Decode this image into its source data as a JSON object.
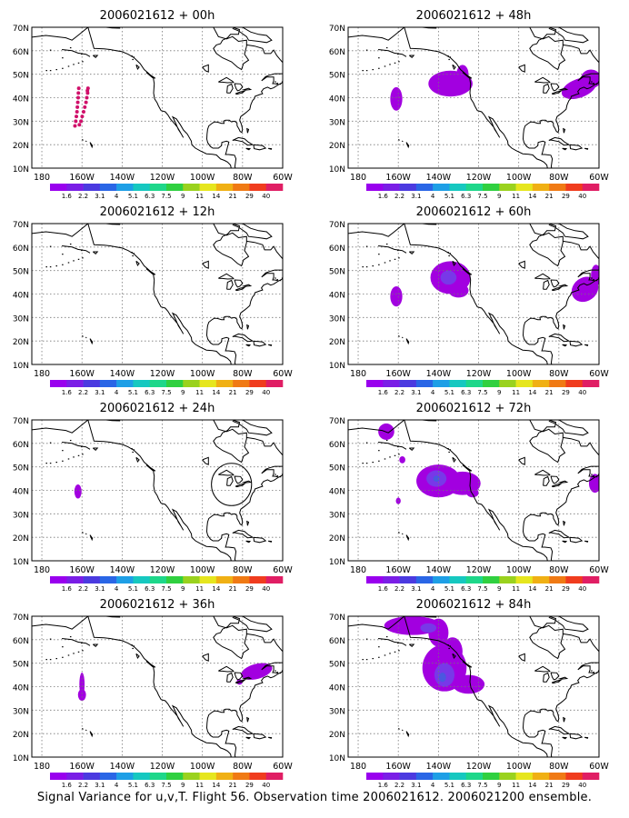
{
  "caption": "Signal Variance for u,v,T. Flight 56. Observation time 2006021612. 2006021200 ensemble.",
  "axes": {
    "lat_labels": [
      "70N",
      "60N",
      "50N",
      "40N",
      "30N",
      "20N",
      "10N"
    ],
    "lon_labels": [
      "180",
      "160W",
      "140W",
      "120W",
      "100W",
      "80W",
      "60W"
    ]
  },
  "colorbar": {
    "labels": [
      "1.6",
      "2.2",
      "3.1",
      "4",
      "5.1",
      "6.3",
      "7.5",
      "9",
      "11",
      "14",
      "21",
      "29",
      "40"
    ],
    "colors": [
      "#9900ee",
      "#7a1ee6",
      "#4b3ae0",
      "#2a66e6",
      "#1e9fe6",
      "#16c8c0",
      "#1ed78a",
      "#30d040",
      "#9ad21e",
      "#e6e61e",
      "#f0b014",
      "#f07a14",
      "#f03c1e",
      "#e01e64"
    ]
  },
  "panels": [
    {
      "id": "p00",
      "title": "2006021612 + 00h"
    },
    {
      "id": "p48",
      "title": "2006021612 + 48h"
    },
    {
      "id": "p12",
      "title": "2006021612 + 12h"
    },
    {
      "id": "p60",
      "title": "2006021612 + 60h"
    },
    {
      "id": "p24",
      "title": "2006021612 + 24h"
    },
    {
      "id": "p72",
      "title": "2006021612 + 72h"
    },
    {
      "id": "p36",
      "title": "2006021612 + 36h"
    },
    {
      "id": "p84",
      "title": "2006021612 + 84h"
    }
  ]
}
